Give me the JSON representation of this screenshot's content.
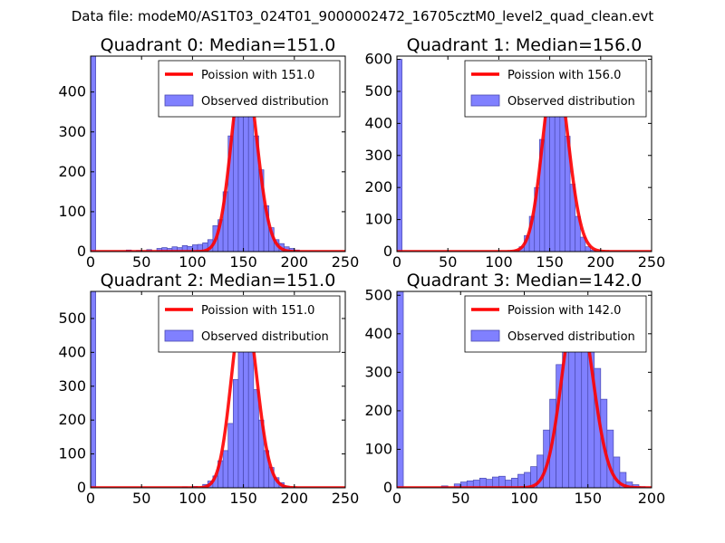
{
  "figure": {
    "suptitle": "Data file: modeM0/AS1T03_024T01_9000002472_16705cztM0_level2_quad_clean.evt",
    "colors": {
      "hist_fill": "#8080ff",
      "hist_edge": "#4a4ab0",
      "poisson_line": "#ff0000",
      "axes": "#000000",
      "background": "#ffffff"
    },
    "legend_location": "upper right"
  },
  "chart_data": [
    {
      "type": "bar",
      "title": "Quadrant 0: Median=151.0",
      "bin_width": 5,
      "xlim": [
        0,
        250
      ],
      "ylim": [
        0,
        490
      ],
      "xticks": [
        0,
        50,
        100,
        150,
        200,
        250
      ],
      "yticks": [
        0,
        100,
        200,
        300,
        400
      ],
      "legend": [
        "Poission with 151.0",
        "Observed distribution"
      ],
      "poisson_mean": 151.0,
      "poisson_scale": 470,
      "histogram": {
        "bin_starts": [
          0,
          35,
          45,
          55,
          65,
          70,
          75,
          80,
          85,
          90,
          95,
          100,
          105,
          110,
          115,
          120,
          125,
          130,
          135,
          140,
          145,
          150,
          155,
          160,
          165,
          170,
          175,
          180,
          185,
          190,
          195,
          200
        ],
        "counts": [
          490,
          4,
          3,
          5,
          8,
          10,
          8,
          12,
          10,
          15,
          13,
          17,
          18,
          22,
          30,
          65,
          80,
          150,
          290,
          360,
          420,
          430,
          410,
          290,
          205,
          115,
          60,
          30,
          20,
          12,
          8,
          4
        ]
      }
    },
    {
      "type": "bar",
      "title": "Quadrant 1: Median=156.0",
      "bin_width": 5,
      "xlim": [
        0,
        250
      ],
      "ylim": [
        0,
        610
      ],
      "xticks": [
        0,
        50,
        100,
        150,
        200,
        250
      ],
      "yticks": [
        0,
        100,
        200,
        300,
        400,
        500,
        600
      ],
      "legend": [
        "Poission with 156.0",
        "Observed distribution"
      ],
      "poisson_mean": 156.0,
      "poisson_scale": 575,
      "histogram": {
        "bin_starts": [
          0,
          115,
          120,
          125,
          130,
          135,
          140,
          145,
          150,
          155,
          160,
          165,
          170,
          175,
          180,
          185,
          190
        ],
        "counts": [
          600,
          5,
          15,
          50,
          110,
          200,
          350,
          500,
          570,
          560,
          480,
          360,
          210,
          110,
          45,
          15,
          5
        ]
      }
    },
    {
      "type": "bar",
      "title": "Quadrant 2: Median=151.0",
      "bin_width": 5,
      "xlim": [
        0,
        250
      ],
      "ylim": [
        0,
        580
      ],
      "xticks": [
        0,
        50,
        100,
        150,
        200,
        250
      ],
      "yticks": [
        0,
        100,
        200,
        300,
        400,
        500
      ],
      "legend": [
        "Poission with 151.0",
        "Observed distribution"
      ],
      "poisson_mean": 151.0,
      "poisson_scale": 545,
      "histogram": {
        "bin_starts": [
          0,
          90,
          100,
          110,
          115,
          120,
          125,
          130,
          135,
          140,
          145,
          150,
          155,
          160,
          165,
          170,
          175,
          180,
          185,
          190
        ],
        "counts": [
          580,
          3,
          4,
          10,
          20,
          35,
          80,
          110,
          190,
          320,
          480,
          500,
          420,
          290,
          200,
          110,
          60,
          30,
          15,
          5
        ]
      }
    },
    {
      "type": "bar",
      "title": "Quadrant 3: Median=142.0",
      "bin_width": 5,
      "xlim": [
        0,
        200
      ],
      "ylim": [
        0,
        510
      ],
      "xticks": [
        0,
        50,
        100,
        150,
        200
      ],
      "yticks": [
        0,
        100,
        200,
        300,
        400,
        500
      ],
      "legend": [
        "Poission with 142.0",
        "Observed distribution"
      ],
      "poisson_mean": 142.0,
      "poisson_scale": 485,
      "histogram": {
        "bin_starts": [
          0,
          35,
          45,
          50,
          55,
          60,
          65,
          70,
          75,
          80,
          85,
          90,
          95,
          100,
          105,
          110,
          115,
          120,
          125,
          130,
          135,
          140,
          145,
          150,
          155,
          160,
          165,
          170,
          175,
          180,
          185,
          190
        ],
        "counts": [
          510,
          5,
          10,
          15,
          18,
          20,
          25,
          22,
          28,
          30,
          20,
          25,
          35,
          40,
          55,
          85,
          150,
          230,
          320,
          420,
          460,
          480,
          450,
          380,
          310,
          230,
          150,
          80,
          40,
          15,
          8,
          3
        ]
      }
    }
  ]
}
